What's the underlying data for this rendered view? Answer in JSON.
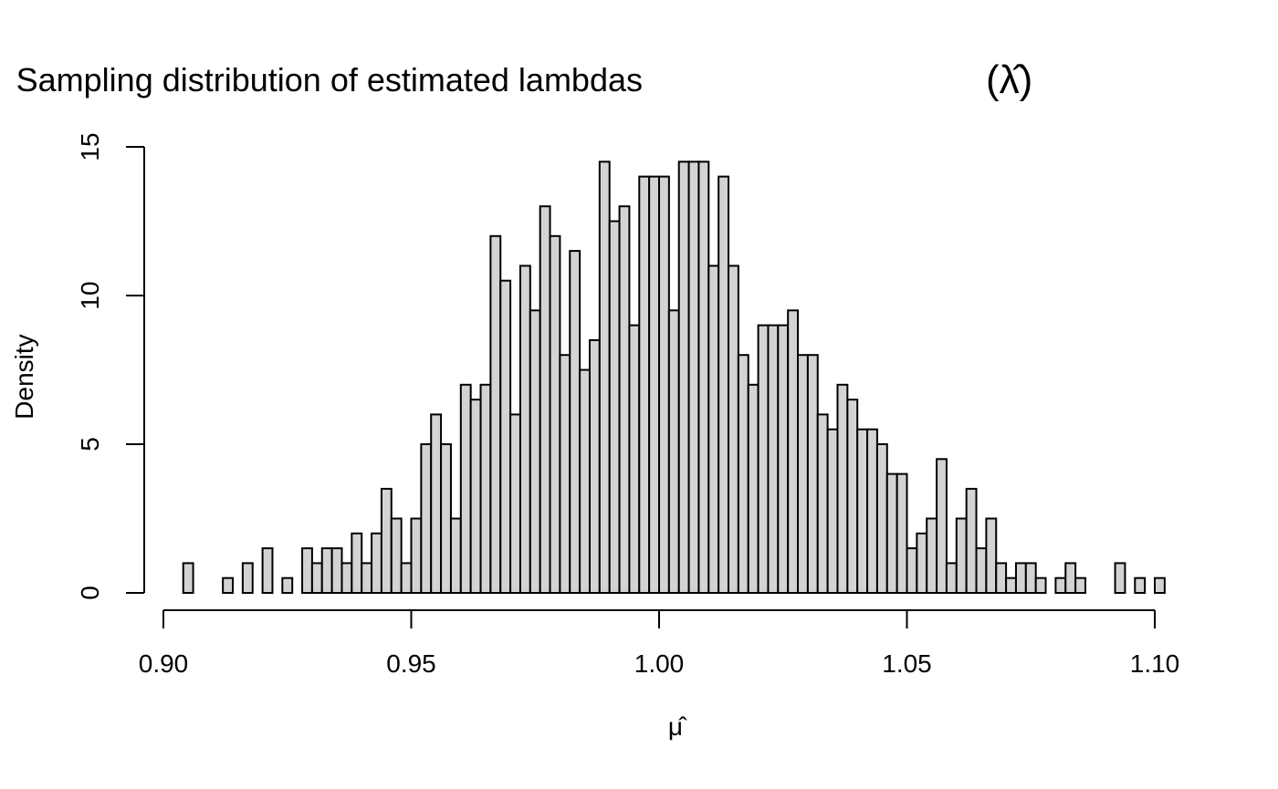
{
  "chart_data": {
    "type": "bar",
    "title": "Sampling distribution of estimated lambdas",
    "title_symbol": "(λ̂)",
    "xlabel": "μ̂",
    "ylabel": "Density",
    "bin_width": 0.002,
    "bin_start": 0.904,
    "xlim": [
      0.9,
      1.1
    ],
    "ylim": [
      0,
      15
    ],
    "x_ticks": [
      0.9,
      0.95,
      1.0,
      1.05,
      1.1
    ],
    "x_tick_labels": [
      "0.90",
      "0.95",
      "1.00",
      "1.05",
      "1.10"
    ],
    "y_ticks": [
      0,
      5,
      10,
      15
    ],
    "y_tick_labels": [
      "0",
      "5",
      "10",
      "15"
    ],
    "grid": false,
    "bar_fill": "#d3d3d3",
    "bar_stroke": "#000000",
    "values": [
      1,
      0,
      0,
      0,
      0.5,
      0,
      1,
      0,
      1.5,
      0,
      0.5,
      0,
      1.5,
      1,
      1.5,
      1.5,
      1,
      2,
      1,
      2,
      3.5,
      2.5,
      1,
      2.5,
      5,
      6,
      5,
      2.5,
      7,
      6.5,
      7,
      12,
      10.5,
      6,
      11,
      9.5,
      13,
      12,
      8,
      11.5,
      7.5,
      8.5,
      14.5,
      12.5,
      13,
      9,
      14,
      14,
      14,
      9.5,
      14.5,
      14.5,
      14.5,
      11,
      14,
      11,
      8,
      7,
      9,
      9,
      9,
      9.5,
      8,
      8,
      6,
      5.5,
      7,
      6.5,
      5.5,
      5.5,
      5,
      4,
      4,
      1.5,
      2,
      2.5,
      4.5,
      1,
      2.5,
      3.5,
      1.5,
      2.5,
      1,
      0.5,
      1,
      1,
      0.5,
      0,
      0.5,
      1,
      0.5,
      0,
      0,
      0,
      1,
      0,
      0.5,
      0,
      0.5
    ]
  }
}
